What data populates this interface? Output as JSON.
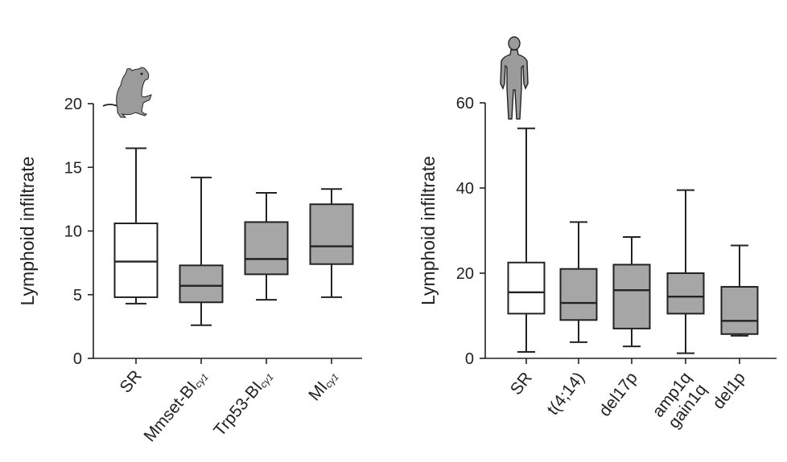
{
  "colors": {
    "box_white": "#ffffff",
    "box_grey": "#a6a6a6",
    "icon_grey": "#9b9b9b",
    "stroke": "#222222"
  },
  "icons": {
    "left_panel": "mouse-icon",
    "right_panel": "human-silhouette-icon"
  },
  "chart_data": [
    {
      "type": "box",
      "ylabel": "Lymphoid infiltrate",
      "ylim": [
        0,
        20
      ],
      "yticks": [
        0,
        5,
        10,
        15,
        20
      ],
      "grid": false,
      "categories": [
        {
          "label": "SR",
          "sub": "",
          "fill": "white",
          "min": 4.3,
          "q1": 4.8,
          "median": 7.6,
          "q3": 10.6,
          "max": 16.5
        },
        {
          "label": "Mmset-BI",
          "sub": "cγ1",
          "fill": "grey",
          "min": 2.6,
          "q1": 4.4,
          "median": 5.7,
          "q3": 7.3,
          "max": 14.2
        },
        {
          "label": "Trp53-BI",
          "sub": "cγ1",
          "fill": "grey",
          "min": 4.6,
          "q1": 6.6,
          "median": 7.8,
          "q3": 10.7,
          "max": 13.0
        },
        {
          "label": "MI",
          "sub": "cγ1",
          "fill": "grey",
          "min": 4.8,
          "q1": 7.4,
          "median": 8.8,
          "q3": 12.1,
          "max": 13.3
        }
      ]
    },
    {
      "type": "box",
      "ylabel": "Lymphoid infiltrate",
      "ylim": [
        0,
        60
      ],
      "yticks": [
        0,
        20,
        40,
        60
      ],
      "grid": false,
      "categories": [
        {
          "label": "SR",
          "sub": "",
          "fill": "white",
          "min": 1.5,
          "q1": 10.5,
          "median": 15.5,
          "q3": 22.5,
          "max": 54.0
        },
        {
          "label": "t(4;14)",
          "sub": "",
          "fill": "grey",
          "min": 3.8,
          "q1": 9.0,
          "median": 13.0,
          "q3": 21.0,
          "max": 32.0
        },
        {
          "label": "del17p",
          "sub": "",
          "fill": "grey",
          "min": 2.8,
          "q1": 7.0,
          "median": 16.0,
          "q3": 22.0,
          "max": 28.5
        },
        {
          "label": "amp1q\ngain1q",
          "sub": "",
          "fill": "grey",
          "min": 1.2,
          "q1": 10.5,
          "median": 14.5,
          "q3": 20.0,
          "max": 39.5
        },
        {
          "label": "del1p",
          "sub": "",
          "fill": "grey",
          "min": 5.3,
          "q1": 5.7,
          "median": 8.8,
          "q3": 16.8,
          "max": 26.5
        }
      ]
    }
  ]
}
